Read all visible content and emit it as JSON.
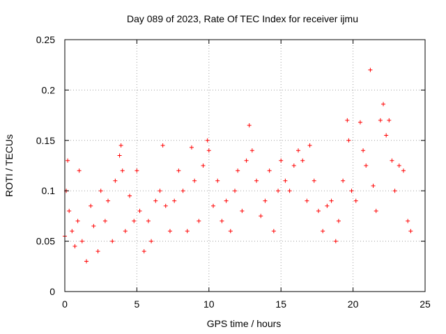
{
  "chart_data": {
    "type": "scatter",
    "title": "Day 089 of 2023, Rate Of TEC Index for receiver ijmu",
    "xlabel": "GPS time / hours",
    "ylabel": "ROTI / TECUs",
    "xlim": [
      0,
      25
    ],
    "ylim": [
      0,
      0.25
    ],
    "xticks": [
      "0",
      "5",
      "10",
      "15",
      "20",
      "25"
    ],
    "yticks": [
      "0",
      "0.05",
      "0.1",
      "0.15",
      "0.2",
      "0.25"
    ],
    "grid": true,
    "marker": "plus",
    "color": "#ff0000",
    "series": [
      {
        "x": [
          0.0,
          0.1,
          0.2,
          0.3,
          0.5,
          0.7,
          0.9,
          1.0,
          1.2,
          1.5,
          1.8,
          2.0,
          2.3,
          2.5,
          2.8,
          3.0,
          3.3,
          3.5,
          3.8,
          3.9,
          4.0,
          4.2,
          4.5,
          4.8,
          5.0,
          5.2,
          5.5,
          5.8,
          6.0,
          6.3,
          6.6,
          6.8,
          7.0,
          7.3,
          7.6,
          7.9,
          8.2,
          8.5,
          8.8,
          9.0,
          9.3,
          9.6,
          9.9,
          10.0,
          10.3,
          10.6,
          10.9,
          11.2,
          11.5,
          11.8,
          12.0,
          12.3,
          12.6,
          12.8,
          13.0,
          13.3,
          13.6,
          13.9,
          14.2,
          14.5,
          14.8,
          15.0,
          15.3,
          15.6,
          15.9,
          16.2,
          16.5,
          16.8,
          17.0,
          17.3,
          17.6,
          17.9,
          18.2,
          18.5,
          18.8,
          19.0,
          19.3,
          19.6,
          19.7,
          19.9,
          20.2,
          20.5,
          20.7,
          20.9,
          21.2,
          21.4,
          21.6,
          21.9,
          22.1,
          22.3,
          22.5,
          22.7,
          22.9,
          23.2,
          23.5,
          23.8,
          24.0
        ],
        "y": [
          0.055,
          0.1,
          0.13,
          0.08,
          0.06,
          0.045,
          0.07,
          0.12,
          0.05,
          0.03,
          0.085,
          0.065,
          0.04,
          0.1,
          0.07,
          0.09,
          0.05,
          0.11,
          0.135,
          0.145,
          0.12,
          0.06,
          0.095,
          0.07,
          0.12,
          0.08,
          0.04,
          0.07,
          0.05,
          0.09,
          0.1,
          0.145,
          0.085,
          0.06,
          0.09,
          0.12,
          0.1,
          0.06,
          0.143,
          0.11,
          0.07,
          0.125,
          0.15,
          0.14,
          0.085,
          0.11,
          0.07,
          0.09,
          0.06,
          0.1,
          0.12,
          0.08,
          0.13,
          0.165,
          0.14,
          0.11,
          0.075,
          0.09,
          0.12,
          0.06,
          0.1,
          0.13,
          0.11,
          0.1,
          0.125,
          0.14,
          0.13,
          0.09,
          0.145,
          0.11,
          0.08,
          0.06,
          0.085,
          0.09,
          0.05,
          0.07,
          0.11,
          0.17,
          0.15,
          0.1,
          0.09,
          0.168,
          0.14,
          0.125,
          0.22,
          0.105,
          0.08,
          0.17,
          0.186,
          0.155,
          0.17,
          0.13,
          0.1,
          0.125,
          0.12,
          0.07,
          0.06
        ]
      }
    ]
  }
}
